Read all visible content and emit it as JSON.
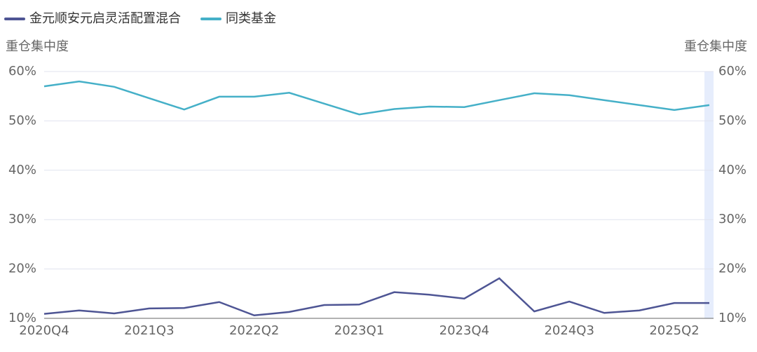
{
  "chart_data": {
    "type": "line",
    "y_label": "重仓集中度",
    "y2_label": "重仓集中度",
    "categories": [
      "2020Q4",
      null,
      null,
      "2021Q3",
      null,
      null,
      "2022Q2",
      null,
      null,
      "2023Q1",
      null,
      null,
      "2023Q4",
      null,
      null,
      "2024Q3",
      null,
      null,
      "2025Q2",
      null
    ],
    "series": [
      {
        "name": "金元顺安元启灵活配置混合",
        "color": "#4e5594",
        "values": [
          10.9,
          11.6,
          11.0,
          12.0,
          12.1,
          13.3,
          10.6,
          11.3,
          12.7,
          12.8,
          15.3,
          14.8,
          14.0,
          18.1,
          11.4,
          13.4,
          11.1,
          11.6,
          13.1,
          13.1
        ]
      },
      {
        "name": "同类基金",
        "color": "#45b0c8",
        "values": [
          57.0,
          58.0,
          56.9,
          54.6,
          52.3,
          54.9,
          54.9,
          55.7,
          53.5,
          51.3,
          52.4,
          52.9,
          52.8,
          54.2,
          55.6,
          55.2,
          54.2,
          53.2,
          52.2,
          53.2
        ]
      }
    ],
    "ylim": [
      10,
      60
    ],
    "yticks": [
      {
        "value": 10,
        "label": "10%"
      },
      {
        "value": 20,
        "label": "20%"
      },
      {
        "value": 30,
        "label": "30%"
      },
      {
        "value": 40,
        "label": "40%"
      },
      {
        "value": 50,
        "label": "50%"
      },
      {
        "value": 60,
        "label": "60%"
      }
    ],
    "y2lim": [
      10,
      60
    ],
    "y2ticks": [
      {
        "value": 10,
        "label": "10%"
      },
      {
        "value": 20,
        "label": "20%"
      },
      {
        "value": 30,
        "label": "30%"
      },
      {
        "value": 40,
        "label": "40%"
      },
      {
        "value": 50,
        "label": "50%"
      },
      {
        "value": 60,
        "label": "60%"
      }
    ],
    "grid": true
  }
}
